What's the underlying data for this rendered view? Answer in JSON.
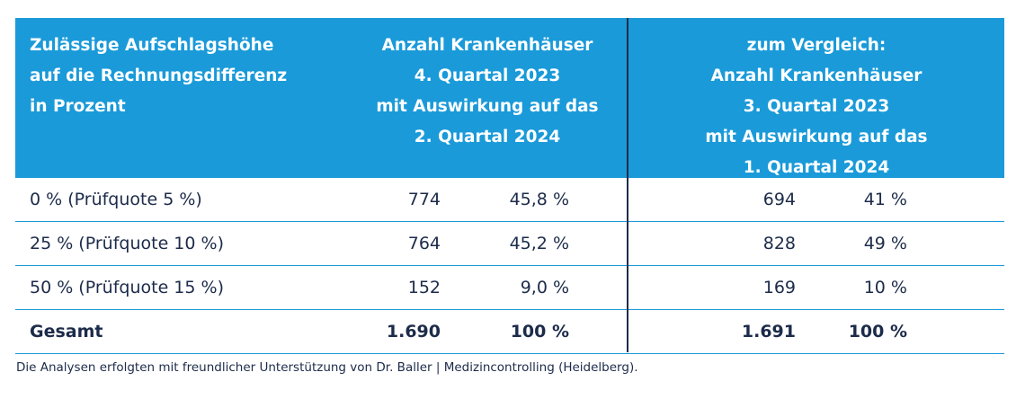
{
  "header": {
    "col1": [
      "Zulässige Aufschlagshöhe",
      "auf die Rechnungsdifferenz",
      "in Prozent"
    ],
    "col2": [
      "Anzahl Krankenhäuser",
      "4. Quartal 2023",
      "mit Auswirkung auf das",
      "2. Quartal 2024"
    ],
    "col3": [
      "zum Vergleich:",
      "Anzahl Krankenhäuser",
      "3. Quartal 2023",
      "mit Auswirkung auf das",
      "1. Quartal 2024"
    ]
  },
  "rows": [
    {
      "label": "0 % (Prüfquote 5 %)",
      "n1": "774",
      "p1": "45,8 %",
      "n2": "694",
      "p2": "41 %"
    },
    {
      "label": "25 % (Prüfquote 10 %)",
      "n1": "764",
      "p1": "45,2 %",
      "n2": "828",
      "p2": "49 %"
    },
    {
      "label": "50 % (Prüfquote 15 %)",
      "n1": "152",
      "p1": "9,0 %",
      "n2": "169",
      "p2": "10 %"
    }
  ],
  "total": {
    "label": "Gesamt",
    "n1": "1.690",
    "p1": "100 %",
    "n2": "1.691",
    "p2": "100 %"
  },
  "footnote": "Die Analysen erfolgten mit freundlicher Unterstützung von Dr. Baller | Medizincontrolling (Heidelberg).",
  "colors": {
    "header_bg": "#1a9ad9",
    "text": "#1c2b4a",
    "rule": "#1a9ad9"
  }
}
